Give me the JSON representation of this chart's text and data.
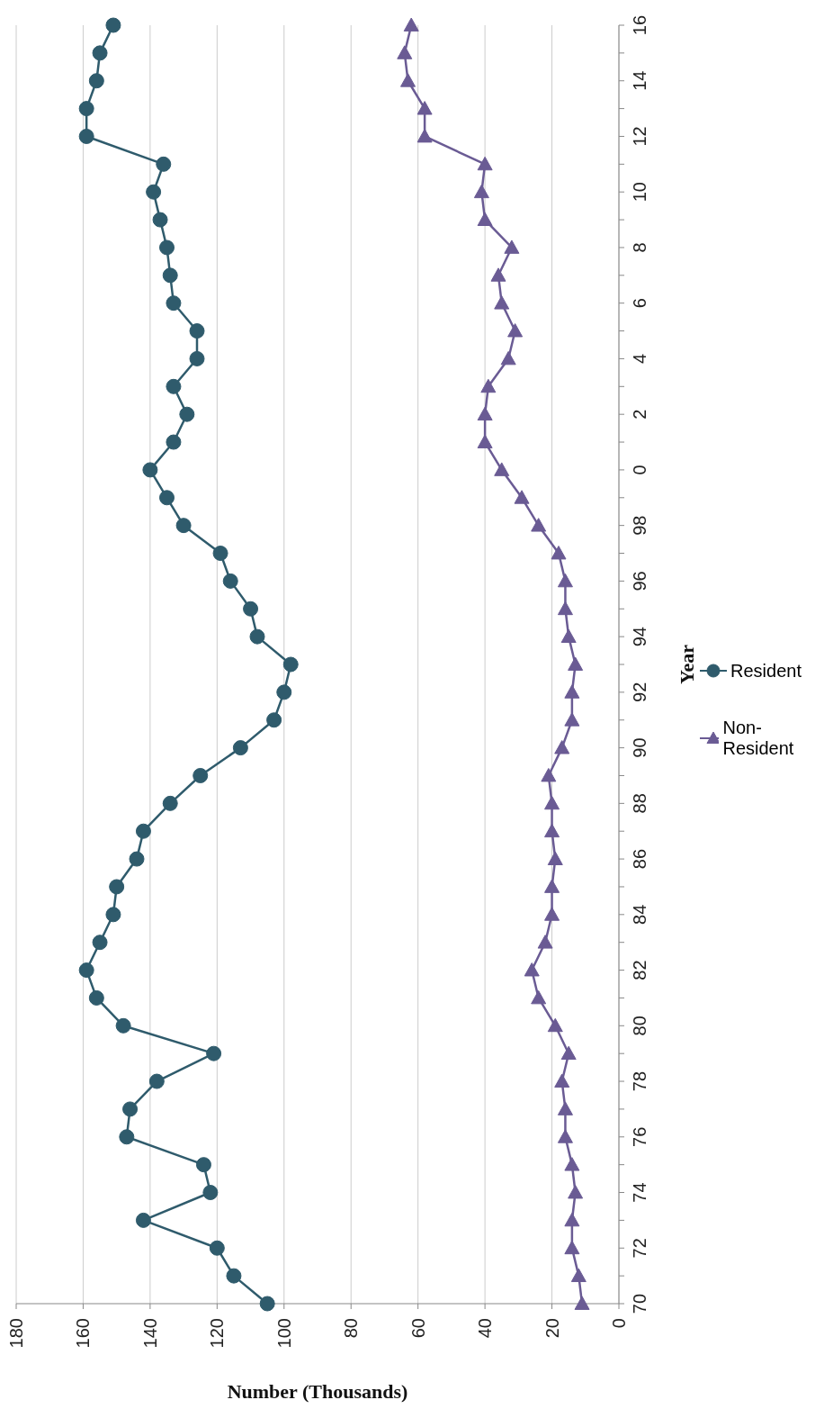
{
  "chart_data": {
    "type": "line",
    "orientation": "horizontal",
    "xlabel": "Number (Thousands)",
    "ylabel": "Year",
    "categories": [
      "16",
      null,
      "14",
      null,
      "12",
      null,
      "10",
      null,
      "8",
      null,
      "6",
      null,
      "4",
      null,
      "2",
      null,
      "0",
      null,
      "98",
      null,
      "96",
      null,
      "94",
      null,
      "92",
      null,
      "90",
      null,
      "88",
      null,
      "86",
      null,
      "84",
      null,
      "82",
      null,
      "80",
      null,
      "78",
      null,
      "76",
      null,
      "74",
      null,
      "72",
      null,
      "70"
    ],
    "series": [
      {
        "name": "Resident",
        "color": "#2f5b6c",
        "marker": "circle",
        "values": [
          151,
          155,
          156,
          159,
          159,
          136,
          139,
          137,
          135,
          134,
          133,
          126,
          126,
          133,
          129,
          133,
          140,
          135,
          130,
          119,
          116,
          110,
          108,
          98,
          100,
          103,
          113,
          125,
          134,
          142,
          144,
          150,
          151,
          155,
          159,
          156,
          148,
          121,
          138,
          146,
          147,
          124,
          122,
          142,
          120,
          115,
          105
        ]
      },
      {
        "name": "Non-Resident",
        "color": "#6a5b94",
        "marker": "triangle",
        "values": [
          62,
          64,
          63,
          58,
          58,
          40,
          41,
          40,
          32,
          36,
          35,
          31,
          33,
          39,
          40,
          40,
          35,
          29,
          24,
          18,
          16,
          16,
          15,
          13,
          14,
          14,
          17,
          21,
          20,
          20,
          19,
          20,
          20,
          22,
          26,
          24,
          19,
          15,
          17,
          16,
          16,
          14,
          13,
          14,
          14,
          12,
          11
        ]
      }
    ],
    "xlim": [
      180,
      0
    ],
    "xticks": [
      180,
      160,
      140,
      120,
      100,
      80,
      60,
      40,
      20,
      0
    ],
    "grid": "x",
    "legend": "right",
    "line_style": "solid"
  }
}
